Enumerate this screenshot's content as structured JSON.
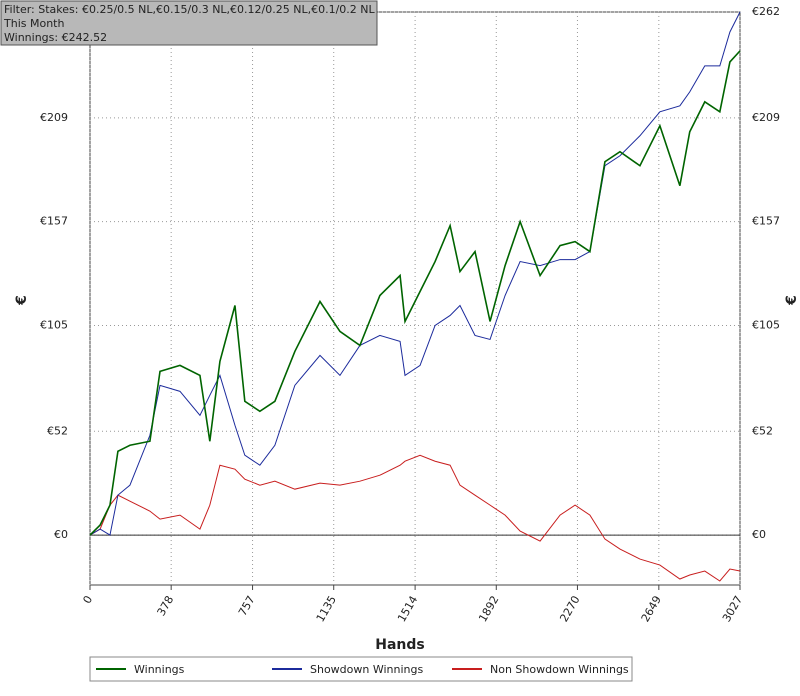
{
  "header": {
    "filter": "Filter: Stakes: €0.25/0.5 NL,€0.15/0.3 NL,€0.12/0.25 NL,€0.1/0.2 NL",
    "period": "This Month",
    "winnings": "Winnings: €242.52"
  },
  "chart_data": {
    "type": "line",
    "x_label": "Hands",
    "y_label": "€",
    "grid": true,
    "xlim": [
      0,
      3027
    ],
    "xticks": [
      0,
      378,
      757,
      1135,
      1514,
      1892,
      2270,
      2649,
      3027
    ],
    "ylim": [
      -25,
      262
    ],
    "yticks": [
      {
        "value": 0,
        "label": "€0"
      },
      {
        "value": 52,
        "label": "€52"
      },
      {
        "value": 105,
        "label": "€105"
      },
      {
        "value": 157,
        "label": "€157"
      },
      {
        "value": 209,
        "label": "€209"
      },
      {
        "value": 262,
        "label": "€262"
      }
    ],
    "x": [
      0,
      47,
      93,
      130,
      186,
      279,
      326,
      419,
      512,
      558,
      605,
      675,
      721,
      791,
      861,
      954,
      1071,
      1164,
      1257,
      1350,
      1444,
      1467,
      1537,
      1607,
      1677,
      1723,
      1793,
      1863,
      1933,
      2003,
      2096,
      2189,
      2259,
      2328,
      2398,
      2468,
      2561,
      2654,
      2747,
      2793,
      2863,
      2933,
      2980,
      3027
    ],
    "series": [
      {
        "name": "Winnings",
        "color": "#006400",
        "values": [
          0,
          5,
          15,
          42,
          45,
          47,
          82,
          85,
          80,
          47,
          87,
          115,
          67,
          62,
          67,
          92,
          117,
          102,
          95,
          120,
          130,
          107,
          122,
          137,
          155,
          132,
          142,
          107,
          135,
          157,
          130,
          145,
          147,
          142,
          187,
          192,
          185,
          205,
          175,
          202,
          217,
          212,
          237,
          242.52
        ]
      },
      {
        "name": "Showdown Winnings",
        "color": "#1c2b9c",
        "values": [
          0,
          3,
          0,
          20,
          25,
          50,
          75,
          72,
          60,
          70,
          80,
          55,
          40,
          35,
          45,
          75,
          90,
          80,
          95,
          100,
          97,
          80,
          85,
          105,
          110,
          115,
          100,
          98,
          120,
          137,
          135,
          138,
          138,
          142,
          185,
          190,
          200,
          212,
          215,
          222,
          235,
          235,
          252,
          262
        ]
      },
      {
        "name": "Non Showdown Winnings",
        "color": "#c81e1e",
        "values": [
          0,
          3,
          15,
          20,
          17,
          12,
          8,
          10,
          3,
          15,
          35,
          33,
          28,
          25,
          27,
          23,
          26,
          25,
          27,
          30,
          35,
          37,
          40,
          37,
          35,
          25,
          20,
          15,
          10,
          2,
          -3,
          10,
          15,
          10,
          -2,
          -7,
          -12,
          -15,
          -22,
          -20,
          -18,
          -23,
          -17,
          -18
        ]
      }
    ]
  }
}
